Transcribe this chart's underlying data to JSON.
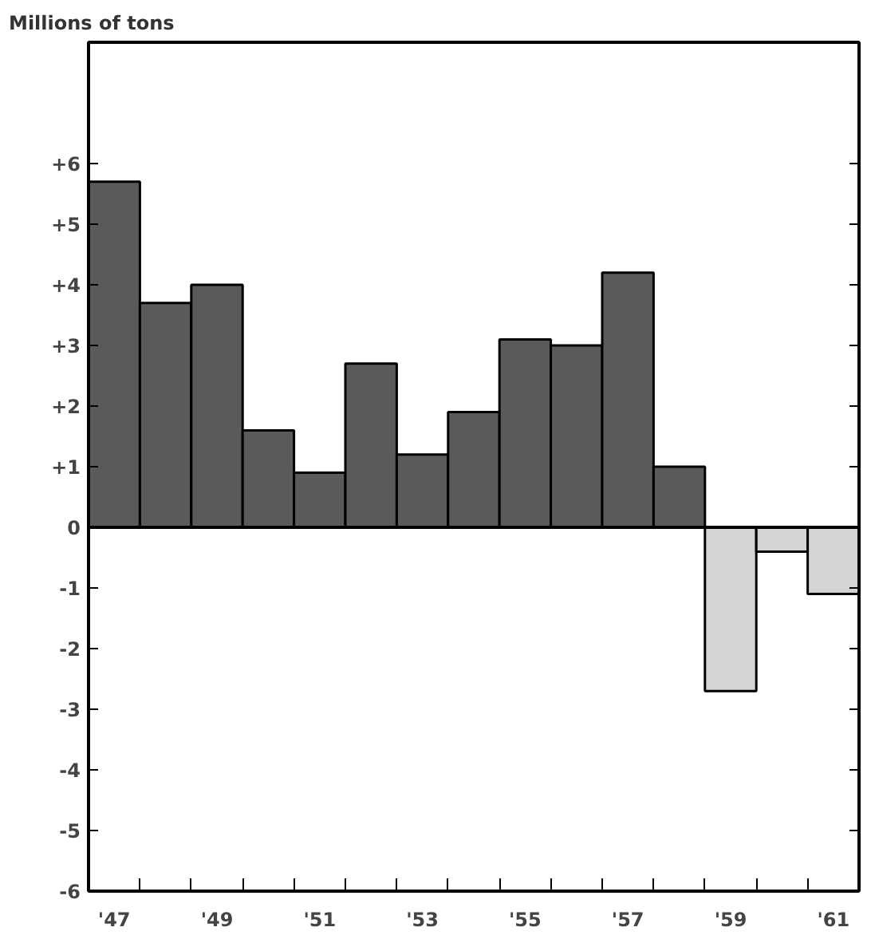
{
  "chart_data": {
    "type": "bar",
    "ylabel": "Millions of tons",
    "categories": [
      "'47",
      null,
      "'49",
      null,
      "'51",
      null,
      "'53",
      null,
      "'55",
      null,
      "'57",
      null,
      "'59",
      null,
      "'61"
    ],
    "values": [
      5.7,
      3.7,
      4.0,
      1.6,
      0.9,
      2.7,
      1.2,
      1.9,
      3.1,
      3.0,
      4.2,
      1.0,
      -2.7,
      -0.4,
      -1.1
    ],
    "colors": [
      "#5a5a5a",
      "#5a5a5a",
      "#5a5a5a",
      "#5a5a5a",
      "#5a5a5a",
      "#5a5a5a",
      "#5a5a5a",
      "#5a5a5a",
      "#5a5a5a",
      "#5a5a5a",
      "#5a5a5a",
      "#5a5a5a",
      "#d4d4d4",
      "#d4d4d4",
      "#d4d4d4"
    ],
    "ylim": [
      -6,
      8
    ],
    "yticks": [
      {
        "value": 6,
        "label": "+6"
      },
      {
        "value": 5,
        "label": "+5"
      },
      {
        "value": 4,
        "label": "+4"
      },
      {
        "value": 3,
        "label": "+3"
      },
      {
        "value": 2,
        "label": "+2"
      },
      {
        "value": 1,
        "label": "+1"
      },
      0,
      -1,
      -2,
      -3,
      -4,
      -5,
      -6
    ],
    "ref_lines": [
      {
        "axis": "y",
        "value": 0,
        "label": null,
        "color": "#000000"
      }
    ],
    "grid": false
  }
}
